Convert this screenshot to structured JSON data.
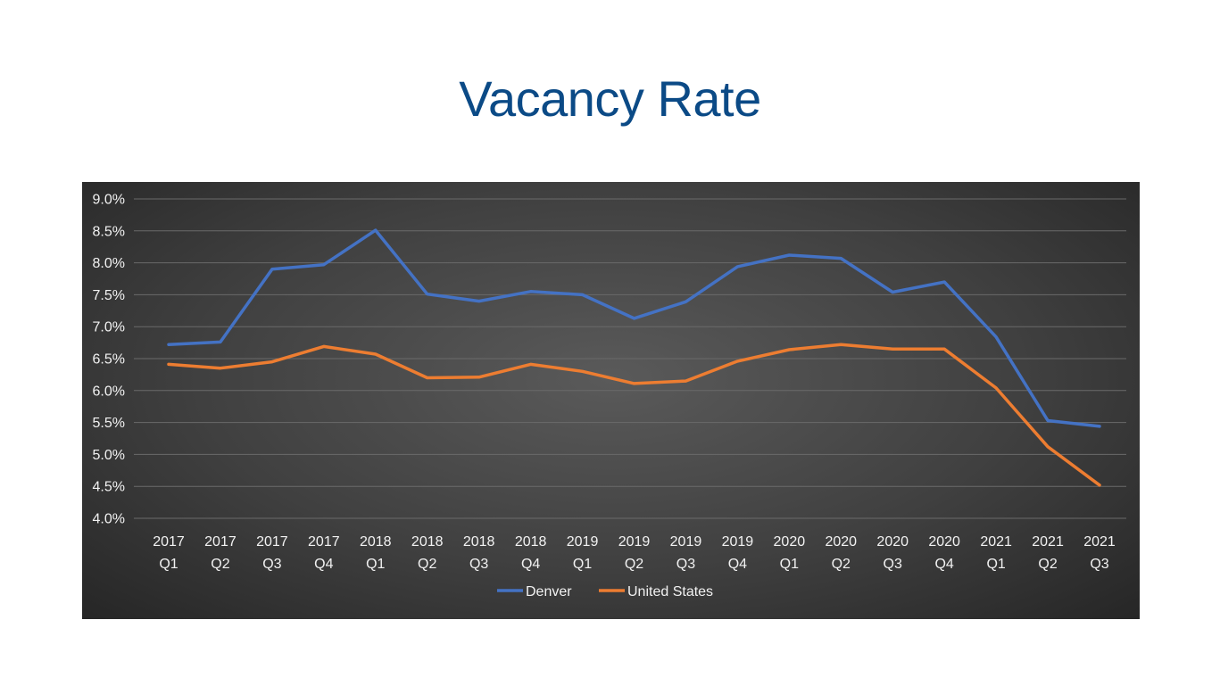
{
  "slide": {
    "title": "Vacancy Rate"
  },
  "chart_data": {
    "type": "line",
    "categories": [
      "2017 Q1",
      "2017 Q2",
      "2017 Q3",
      "2017 Q4",
      "2018 Q1",
      "2018 Q2",
      "2018 Q3",
      "2018 Q4",
      "2019 Q1",
      "2019 Q2",
      "2019 Q3",
      "2019 Q4",
      "2020 Q1",
      "2020 Q2",
      "2020 Q3",
      "2020 Q4",
      "2021 Q1",
      "2021 Q2",
      "2021 Q3"
    ],
    "series": [
      {
        "name": "Denver",
        "color": "#4472c4",
        "values": [
          6.72,
          6.76,
          7.9,
          7.97,
          8.51,
          7.51,
          7.4,
          7.55,
          7.5,
          7.13,
          7.39,
          7.94,
          8.12,
          8.07,
          7.54,
          7.7,
          6.84,
          5.53,
          5.44
        ]
      },
      {
        "name": "United States",
        "color": "#ed7d31",
        "values": [
          6.41,
          6.35,
          6.45,
          6.69,
          6.57,
          6.2,
          6.21,
          6.41,
          6.3,
          6.11,
          6.15,
          6.46,
          6.64,
          6.72,
          6.65,
          6.65,
          6.04,
          5.12,
          4.52
        ]
      }
    ],
    "y_ticks": [
      "4.0%",
      "4.5%",
      "5.0%",
      "5.5%",
      "6.0%",
      "6.5%",
      "7.0%",
      "7.5%",
      "8.0%",
      "8.5%",
      "9.0%"
    ],
    "ylim": [
      4.0,
      9.0
    ],
    "grid": true,
    "legend_position": "bottom"
  }
}
